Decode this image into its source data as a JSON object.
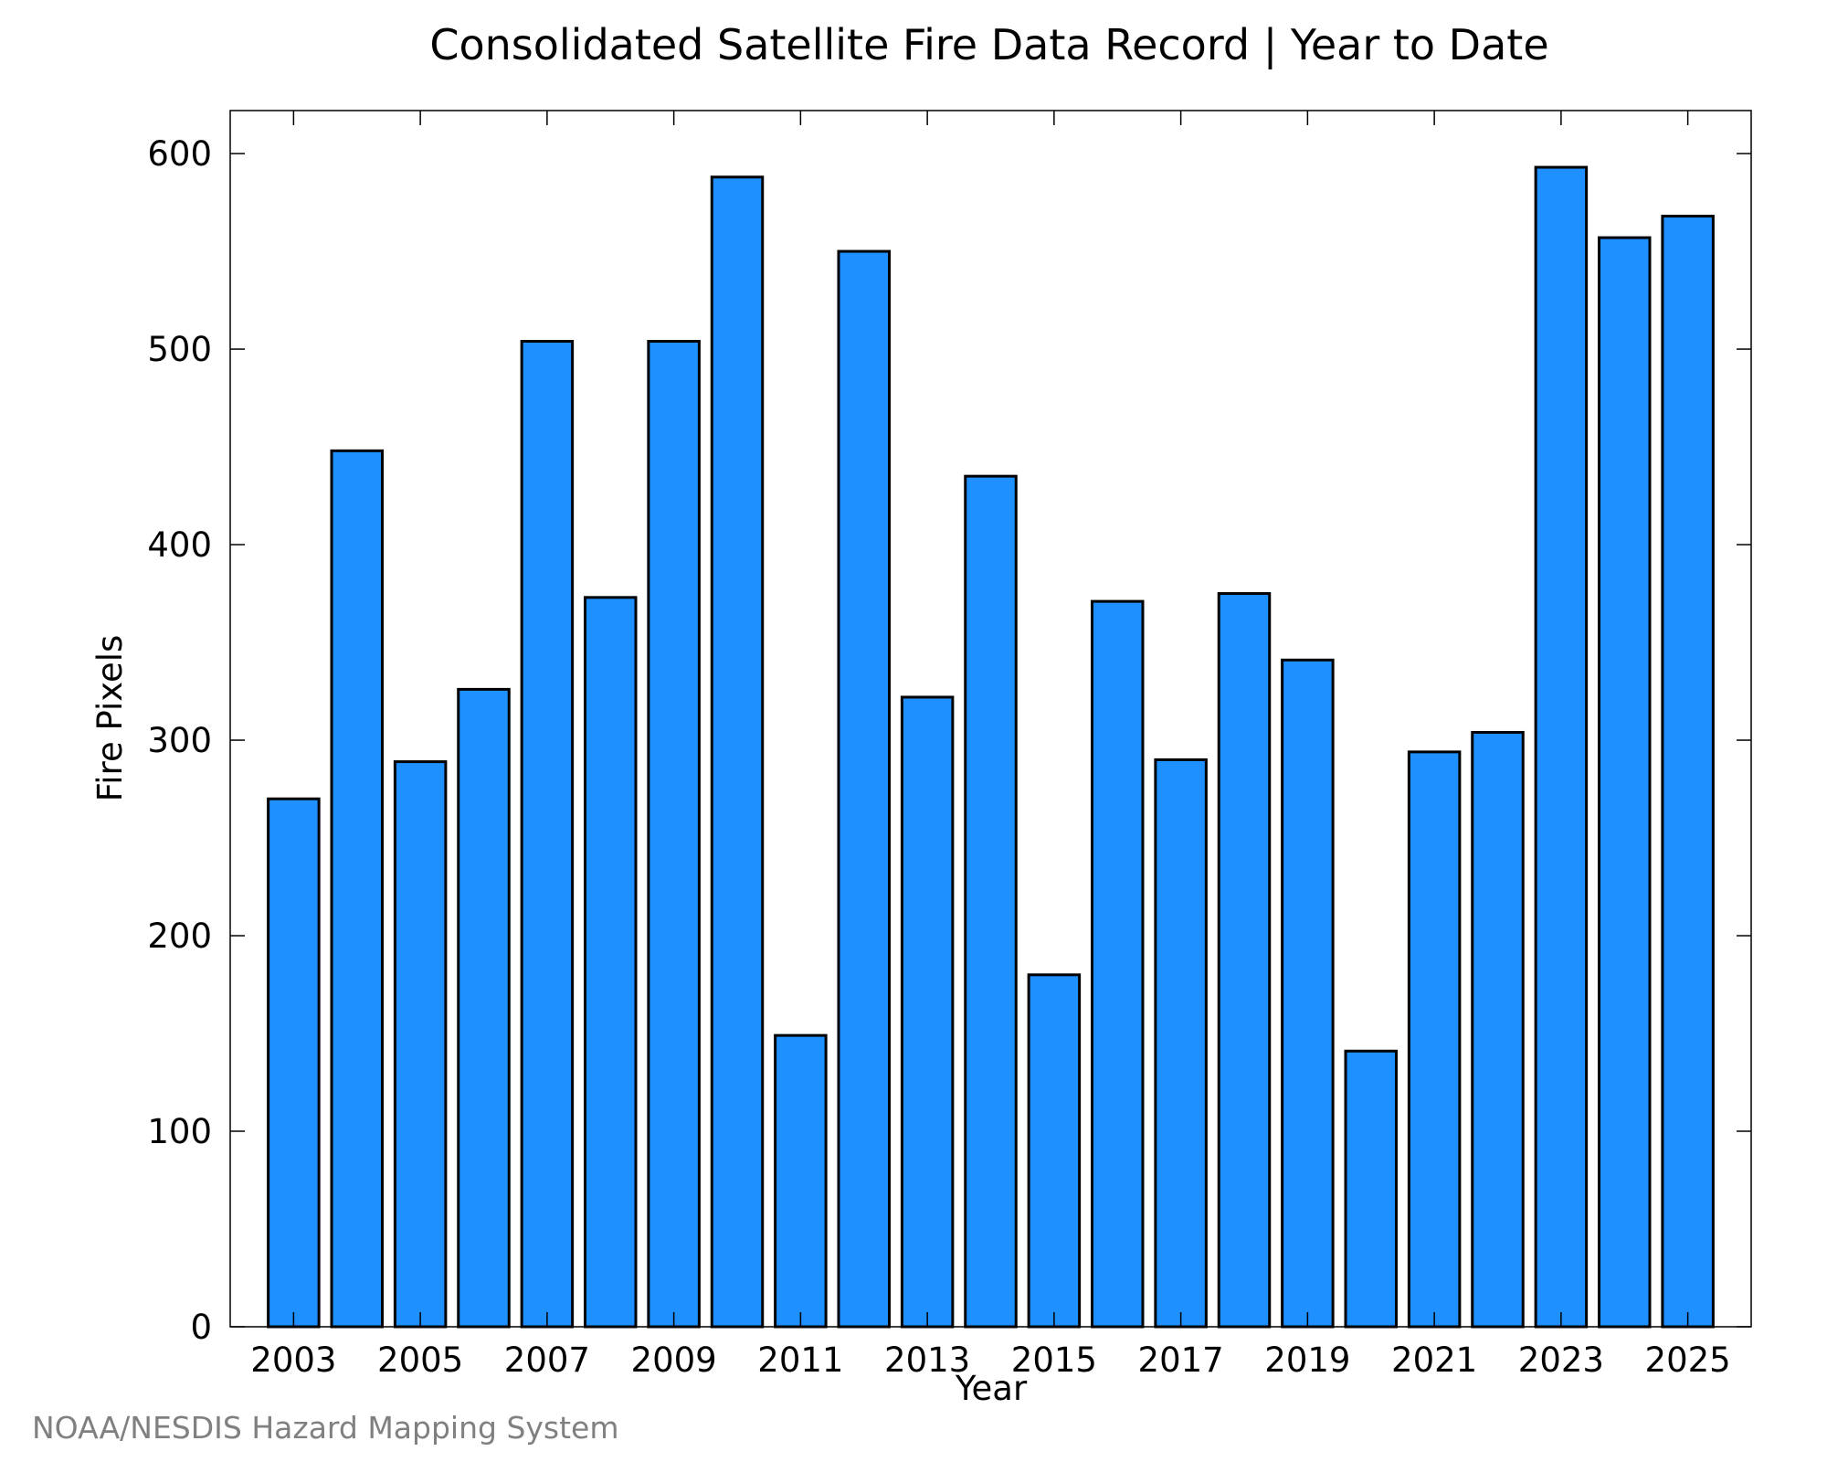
{
  "chart_data": {
    "type": "bar",
    "title": "Consolidated Satellite Fire Data Record | Year to Date",
    "xlabel": "Year",
    "ylabel": "Fire Pixels",
    "categories": [
      "2003",
      "2004",
      "2005",
      "2006",
      "2007",
      "2008",
      "2009",
      "2010",
      "2011",
      "2012",
      "2013",
      "2014",
      "2015",
      "2016",
      "2017",
      "2018",
      "2019",
      "2020",
      "2021",
      "2022",
      "2023",
      "2024",
      "2025"
    ],
    "values": [
      270,
      448,
      289,
      326,
      504,
      373,
      504,
      588,
      149,
      550,
      322,
      435,
      180,
      371,
      290,
      375,
      341,
      141,
      294,
      304,
      593,
      557,
      568
    ],
    "xticks": [
      "2003",
      "2005",
      "2007",
      "2009",
      "2011",
      "2013",
      "2015",
      "2017",
      "2019",
      "2021",
      "2023",
      "2025"
    ],
    "yticks": [
      0,
      100,
      200,
      300,
      400,
      500,
      600
    ],
    "ylim": [
      0,
      622
    ],
    "bar_color": "#1e90ff",
    "grid": false
  },
  "credit": "NOAA/NESDIS Hazard Mapping System"
}
